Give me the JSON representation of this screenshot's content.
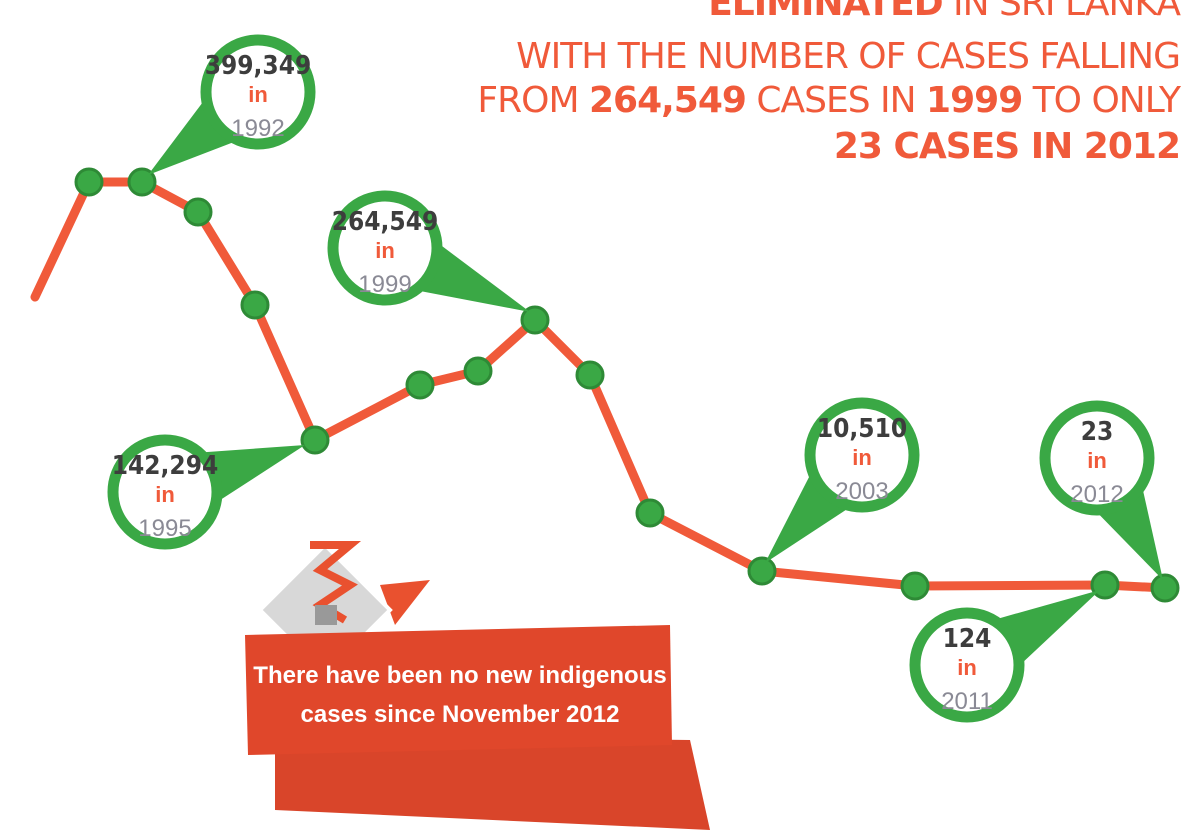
{
  "headline": {
    "lines": [
      [
        "ELIMINATED",
        " IN SRI LANKA"
      ],
      [
        "WITH THE NUMBER OF CASES FALLING"
      ],
      [
        "FROM ",
        "264,549",
        " CASES IN ",
        "1999",
        " TO ONLY"
      ],
      [
        "23 CASES IN 2012"
      ]
    ]
  },
  "callouts": [
    {
      "value": "399,349",
      "in": "in",
      "year": "1992"
    },
    {
      "value": "264,549",
      "in": "in",
      "year": "1999"
    },
    {
      "value": "142,294",
      "in": "in",
      "year": "1995"
    },
    {
      "value": "10,510",
      "in": "in",
      "year": "2003"
    },
    {
      "value": "23",
      "in": "in",
      "year": "2012"
    },
    {
      "value": "124",
      "in": "in",
      "year": "2011"
    }
  ],
  "banner": {
    "lines": [
      "There have been no new indigenous",
      "cases since November 2012"
    ]
  }
}
